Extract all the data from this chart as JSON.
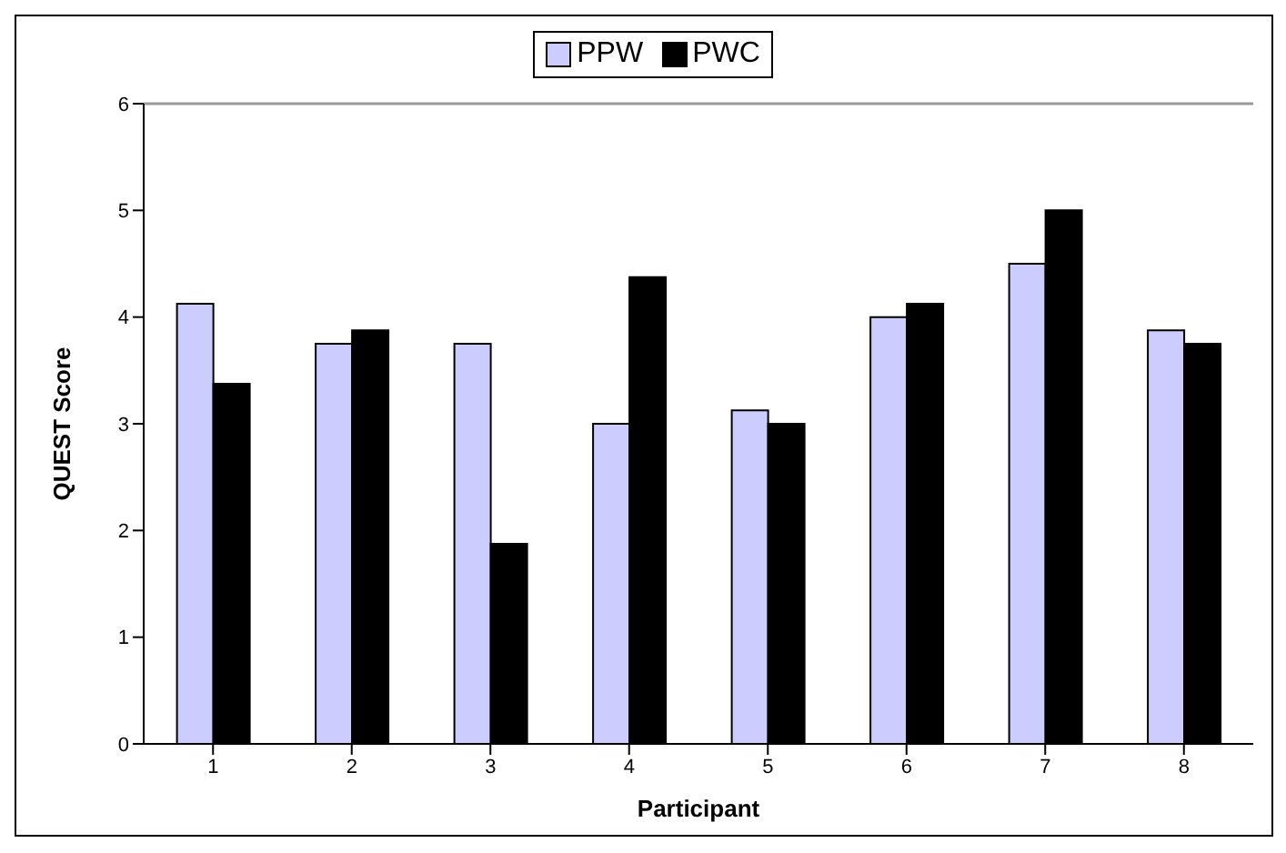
{
  "chart_data": {
    "type": "bar",
    "xlabel": "Participant",
    "ylabel": "QUEST Score",
    "categories": [
      "1",
      "2",
      "3",
      "4",
      "5",
      "6",
      "7",
      "8"
    ],
    "series": [
      {
        "name": "PPW",
        "color": "#ccccff",
        "values": [
          4.125,
          3.75,
          3.75,
          3,
          3.125,
          4,
          4.5,
          3.875
        ]
      },
      {
        "name": "PWC",
        "color": "#000000",
        "values": [
          3.375,
          3.875,
          1.875,
          4.375,
          3,
          4.125,
          5,
          3.75
        ]
      }
    ],
    "ylim": [
      0,
      6
    ],
    "yticks": [
      0,
      1,
      2,
      3,
      4,
      5,
      6
    ],
    "grid": false,
    "legend": "top"
  }
}
